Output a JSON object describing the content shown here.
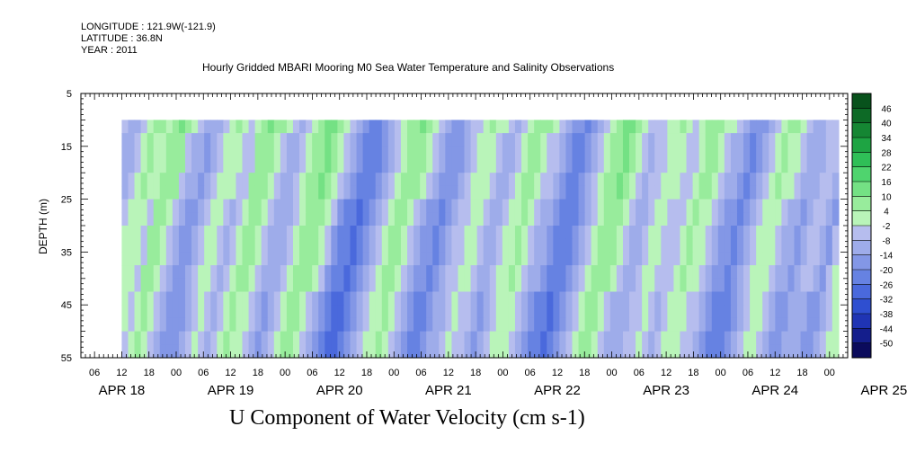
{
  "header": {
    "longitude": "LONGITUDE : 121.9W(-121.9)",
    "latitude": "LATITUDE : 36.8N",
    "year": "YEAR : 2011"
  },
  "chart_data": {
    "type": "heatmap",
    "title": "Hourly Gridded MBARI Mooring M0 Sea Water Temperature and Salinity Observations",
    "xlabel": "U Component of Water Velocity (cm s-1)",
    "ylabel": "DEPTH (m)",
    "grid": false,
    "legend": "right",
    "x_unit": "hours since Apr 18 2011 00:00",
    "x_range": [
      3,
      172
    ],
    "data_x_range": [
      12,
      170
    ],
    "y_range": [
      5,
      55
    ],
    "y_reversed": true,
    "data_y_range": [
      10,
      55
    ],
    "y_ticks": [
      5,
      15,
      25,
      35,
      45,
      55
    ],
    "y_tick_labels": [
      "5",
      "15",
      "25",
      "35",
      "45",
      "55"
    ],
    "hour_ticks": [
      6,
      12,
      18,
      0,
      6,
      12,
      18,
      0,
      6,
      12,
      18,
      0,
      6,
      12,
      18,
      0,
      6,
      12,
      18,
      0,
      6,
      12,
      18,
      0,
      6,
      12,
      18,
      0
    ],
    "hour_tick_labels": [
      "06",
      "12",
      "18",
      "00",
      "06",
      "12",
      "18",
      "00",
      "06",
      "12",
      "18",
      "00",
      "06",
      "12",
      "18",
      "00",
      "06",
      "12",
      "18",
      "00",
      "06",
      "12",
      "18",
      "00",
      "06",
      "12",
      "18",
      "00"
    ],
    "day_labels": [
      "APR 18",
      "APR 19",
      "APR 20",
      "APR 21",
      "APR 22",
      "APR 23",
      "APR 24",
      "APR 25"
    ],
    "colorbar": {
      "levels": [
        -50,
        -44,
        -38,
        -32,
        -26,
        -20,
        -14,
        -8,
        -2,
        4,
        10,
        16,
        22,
        28,
        34,
        40,
        46
      ],
      "labels": [
        "-50",
        "-44",
        "-38",
        "-32",
        "-26",
        "-20",
        "-14",
        "-8",
        "-2",
        "4",
        "10",
        "16",
        "22",
        "28",
        "34",
        "40",
        "46"
      ],
      "colors": [
        "#0b0b5c",
        "#141e8c",
        "#1f34b4",
        "#2f4fd0",
        "#4a69dc",
        "#6682e2",
        "#8397e6",
        "#9eacea",
        "#b6bdee",
        "#b9f4b9",
        "#98ec9c",
        "#74e184",
        "#4fd46e",
        "#2fbf57",
        "#1ea443",
        "#158633",
        "#0d6a26",
        "#08521c"
      ]
    },
    "column_values": [
      -6,
      -12,
      -14,
      -6,
      0,
      4,
      2,
      -2,
      6,
      8,
      4,
      -4,
      -10,
      -14,
      -16,
      -12,
      -6,
      0,
      2,
      -2,
      -8,
      -4,
      4,
      8,
      6,
      2,
      -4,
      -10,
      -12,
      -8,
      -2,
      4,
      8,
      10,
      6,
      0,
      -6,
      -14,
      -20,
      -24,
      -26,
      -22,
      -16,
      -10,
      -4,
      2,
      6,
      8,
      4,
      -2,
      -8,
      -14,
      -18,
      -20,
      -16,
      -10,
      -6,
      -2,
      2,
      0,
      -4,
      -10,
      -12,
      -6,
      0,
      4,
      6,
      2,
      -4,
      -8,
      -12,
      -18,
      -22,
      -24,
      -20,
      -14,
      -8,
      -2,
      4,
      8,
      10,
      6,
      0,
      -6,
      -10,
      -8,
      -4,
      0,
      2,
      -2,
      -6,
      -4,
      2,
      6,
      4,
      0,
      -4,
      -10,
      -14,
      -18,
      -22,
      -18,
      -12,
      -6,
      0,
      4,
      2,
      -2,
      -8,
      -12,
      -14,
      -10,
      -6
    ],
    "depth_profile": [
      [
        10,
        4
      ],
      [
        15,
        2
      ],
      [
        25,
        0
      ],
      [
        35,
        -2
      ],
      [
        45,
        -4
      ],
      [
        55,
        -6
      ]
    ]
  }
}
